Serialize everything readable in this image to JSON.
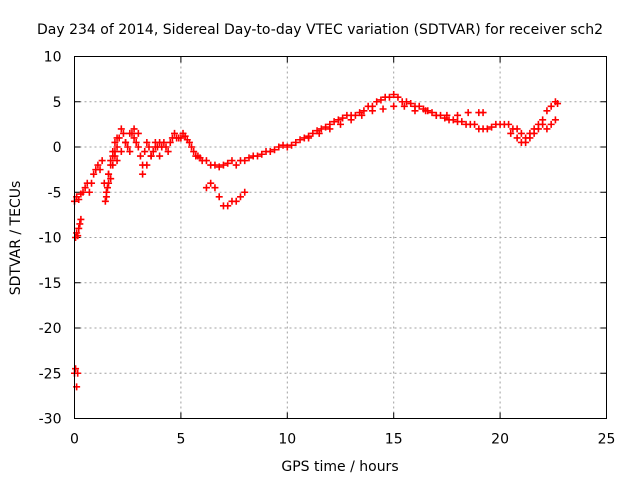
{
  "chart_data": {
    "type": "scatter",
    "title": "Day 234 of 2014, Sidereal Day-to-day VTEC variation (SDTVAR) for receiver sch2",
    "xlabel": "GPS time / hours",
    "ylabel": "SDTVAR / TECUs",
    "xlim": [
      0,
      25
    ],
    "ylim": [
      -30,
      10
    ],
    "xticks": [
      "0",
      "5",
      "10",
      "15",
      "20",
      "25"
    ],
    "yticks": [
      "10",
      "5",
      "0",
      "-5",
      "-10",
      "-15",
      "-20",
      "-25",
      "-30"
    ],
    "grid": true,
    "marker": "plus",
    "series": [
      {
        "name": "sch2",
        "color": "#ff0000",
        "x": [
          0.0,
          0.05,
          0.1,
          0.15,
          0.05,
          0.1,
          0.15,
          0.2,
          0.25,
          0.3,
          0.0,
          0.1,
          0.2,
          0.3,
          0.4,
          0.5,
          0.6,
          0.7,
          0.8,
          0.9,
          1.0,
          1.1,
          1.2,
          1.3,
          1.4,
          1.45,
          1.5,
          1.55,
          1.6,
          1.7,
          1.8,
          1.9,
          2.0,
          2.1,
          2.2,
          2.3,
          2.4,
          2.5,
          2.6,
          2.7,
          2.8,
          2.9,
          3.0,
          3.1,
          3.2,
          3.3,
          3.4,
          3.5,
          3.6,
          3.7,
          3.8,
          3.9,
          4.0,
          4.1,
          4.2,
          4.3,
          4.4,
          4.5,
          4.6,
          4.7,
          4.8,
          4.9,
          5.0,
          5.1,
          5.2,
          5.3,
          5.4,
          5.5,
          5.6,
          5.7,
          5.8,
          5.9,
          6.0,
          6.2,
          6.4,
          6.6,
          6.8,
          7.0,
          7.2,
          7.4,
          7.6,
          7.8,
          8.0,
          8.2,
          8.4,
          8.6,
          8.8,
          9.0,
          9.2,
          9.4,
          9.6,
          9.8,
          10.0,
          6.2,
          6.4,
          6.6,
          6.8,
          7.0,
          7.2,
          7.4,
          7.6,
          7.8,
          8.0,
          10.2,
          10.4,
          10.6,
          10.8,
          11.0,
          11.2,
          11.4,
          11.6,
          11.8,
          12.0,
          12.2,
          12.4,
          12.6,
          12.8,
          13.0,
          13.2,
          13.4,
          13.6,
          13.8,
          14.0,
          14.2,
          14.4,
          14.6,
          14.8,
          15.0,
          15.2,
          15.4,
          15.6,
          15.8,
          16.0,
          16.2,
          16.4,
          16.6,
          16.8,
          17.0,
          17.2,
          17.4,
          17.6,
          17.8,
          18.0,
          18.2,
          18.4,
          18.6,
          18.8,
          19.0,
          19.2,
          19.4,
          19.6,
          19.8,
          20.0,
          20.2,
          20.4,
          20.6,
          20.8,
          21.0,
          21.2,
          21.4,
          21.6,
          21.8,
          22.0,
          22.2,
          22.4,
          22.6,
          22.7,
          11.0,
          11.5,
          12.0,
          12.5,
          13.0,
          13.5,
          14.0,
          14.5,
          15.0,
          15.5,
          16.0,
          16.5,
          17.0,
          17.5,
          18.0,
          18.5,
          19.0,
          19.2,
          3.2,
          3.4,
          3.6,
          3.8,
          4.0,
          2.0,
          2.2,
          2.4,
          2.6,
          2.8,
          3.0,
          1.6,
          1.7,
          1.8,
          1.9,
          2.0,
          1.5,
          1.6,
          1.7,
          1.8,
          1.9,
          20.5,
          20.8,
          21.0,
          21.2,
          21.4,
          21.6,
          21.8,
          22.0,
          22.2,
          22.4,
          22.6
        ],
        "y": [
          -25.0,
          -24.5,
          -26.5,
          -25.0,
          -10.0,
          -9.5,
          -9.8,
          -9.0,
          -8.5,
          -8.0,
          -6.0,
          -5.5,
          -5.8,
          -5.2,
          -5.0,
          -4.5,
          -4.0,
          -5.0,
          -4.0,
          -3.0,
          -2.5,
          -2.0,
          -2.5,
          -1.5,
          -4.0,
          -6.0,
          -5.5,
          -4.5,
          -3.0,
          -2.0,
          -1.0,
          -0.5,
          0.0,
          1.0,
          2.0,
          1.5,
          0.5,
          0.0,
          -0.5,
          1.5,
          1.0,
          0.5,
          0.0,
          -1.0,
          -2.0,
          -0.5,
          0.5,
          0.0,
          -1.0,
          -0.5,
          0.5,
          0.0,
          -1.0,
          0.0,
          0.5,
          0.0,
          -0.5,
          0.5,
          1.0,
          1.5,
          1.0,
          1.0,
          1.0,
          1.5,
          1.2,
          0.8,
          0.5,
          0.0,
          -0.5,
          -1.0,
          -1.0,
          -1.2,
          -1.5,
          -1.5,
          -2.0,
          -2.0,
          -2.2,
          -2.0,
          -1.8,
          -1.5,
          -2.0,
          -1.5,
          -1.5,
          -1.2,
          -1.0,
          -1.0,
          -0.8,
          -0.5,
          -0.5,
          -0.3,
          0.0,
          0.2,
          0.0,
          -4.5,
          -4.0,
          -4.5,
          -5.5,
          -6.5,
          -6.5,
          -6.0,
          -6.0,
          -5.5,
          -5.0,
          0.2,
          0.5,
          0.8,
          1.0,
          1.2,
          1.5,
          1.8,
          2.0,
          2.2,
          2.5,
          2.8,
          3.0,
          3.2,
          3.5,
          3.5,
          3.5,
          3.8,
          4.0,
          4.5,
          4.5,
          5.0,
          5.2,
          5.5,
          5.5,
          5.8,
          5.5,
          5.0,
          5.0,
          4.8,
          4.5,
          4.5,
          4.2,
          4.0,
          3.8,
          3.5,
          3.5,
          3.2,
          3.0,
          3.0,
          2.8,
          2.8,
          2.5,
          2.5,
          2.5,
          2.0,
          2.0,
          2.0,
          2.2,
          2.5,
          2.5,
          2.5,
          2.5,
          2.0,
          2.0,
          1.5,
          1.0,
          1.5,
          2.0,
          2.5,
          3.0,
          4.0,
          4.5,
          5.0,
          4.8,
          1.0,
          1.5,
          2.0,
          2.5,
          3.0,
          3.5,
          4.0,
          4.2,
          4.5,
          4.5,
          4.0,
          4.0,
          3.5,
          3.5,
          3.5,
          3.8,
          3.8,
          3.8,
          -3.0,
          -2.0,
          -1.0,
          0.0,
          0.5,
          -1.5,
          -0.5,
          0.5,
          1.5,
          2.0,
          1.5,
          -3.0,
          -1.5,
          -0.5,
          0.5,
          1.0,
          -5.0,
          -4.0,
          -3.5,
          -2.0,
          -1.0,
          1.5,
          1.0,
          0.5,
          0.5,
          1.0,
          1.5,
          2.0,
          2.5,
          2.0,
          2.5,
          3.0
        ]
      }
    ]
  }
}
